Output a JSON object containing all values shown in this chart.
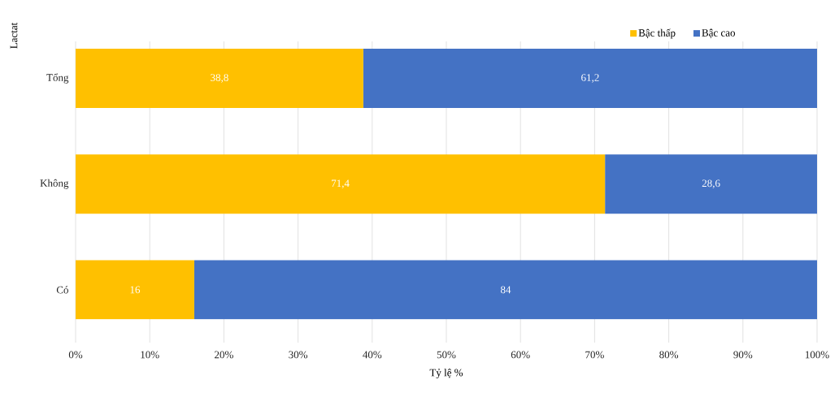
{
  "chart_data": {
    "type": "bar",
    "orientation": "horizontal",
    "stacked": true,
    "categories": [
      "Tổng",
      "Không",
      "Có"
    ],
    "series": [
      {
        "name": "Bậc thấp",
        "color": "#ffc000",
        "values": [
          38.8,
          71.4,
          16
        ],
        "value_labels": [
          "38,8",
          "71,4",
          "16"
        ]
      },
      {
        "name": "Bậc cao",
        "color": "#4472c4",
        "values": [
          61.2,
          28.6,
          84
        ],
        "value_labels": [
          "61,2",
          "28,6",
          "84"
        ]
      }
    ],
    "xlim": [
      0,
      100
    ],
    "xticks": [
      {
        "value": 0,
        "label": "0%"
      },
      {
        "value": 10,
        "label": "10%"
      },
      {
        "value": 20,
        "label": "20%"
      },
      {
        "value": 30,
        "label": "30%"
      },
      {
        "value": 40,
        "label": "40%"
      },
      {
        "value": 50,
        "label": "50%"
      },
      {
        "value": 60,
        "label": "60%"
      },
      {
        "value": 70,
        "label": "70%"
      },
      {
        "value": 80,
        "label": "80%"
      },
      {
        "value": 90,
        "label": "90%"
      },
      {
        "value": 100,
        "label": "100%"
      }
    ],
    "grid": "x",
    "legend": "top right",
    "xlabel": "Tỷ lệ %",
    "ylabel": "Lactat"
  }
}
